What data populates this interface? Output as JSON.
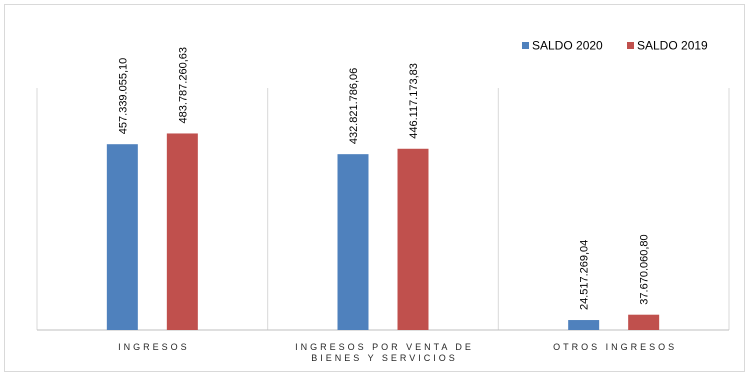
{
  "chart_data": {
    "type": "bar",
    "categories": [
      [
        "INGRESOS"
      ],
      [
        "INGRESOS POR VENTA DE",
        "BIENES Y SERVICIOS"
      ],
      [
        "OTROS INGRESOS"
      ]
    ],
    "series": [
      {
        "name": "SALDO  2020",
        "color": "#4f81bd",
        "values": [
          457339055.1,
          432821786.06,
          24517269.04
        ],
        "labels": [
          "457.339.055,10",
          "432.821.786,06",
          "24.517.269,04"
        ]
      },
      {
        "name": "SALDO  2019",
        "color": "#c0504d",
        "values": [
          483787260.63,
          446117173.83,
          37670060.8
        ],
        "labels": [
          "483.787.260,63",
          "446.117.173,83",
          "37.670.060,80"
        ]
      }
    ],
    "ylim": [
      0,
      800000000
    ],
    "grid": false,
    "separators": true,
    "legend": "top-right"
  }
}
